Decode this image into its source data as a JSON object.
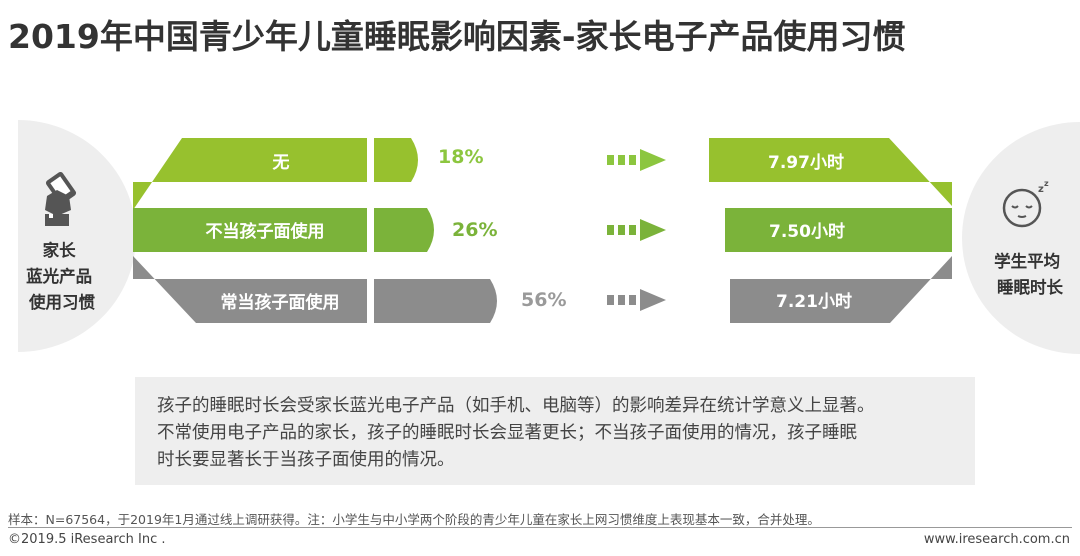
{
  "title": "2019年中国青少年儿童睡眠影响因素-家长电子产品使用习惯",
  "left_label": [
    "家长",
    "蓝光产品",
    "使用习惯"
  ],
  "right_label": [
    "学生平均",
    "睡眠时长"
  ],
  "icons": {
    "left": "hand-holding-phone-icon",
    "right": "sleeping-face-icon",
    "arrow": "dashed-arrow-icon"
  },
  "colors": {
    "light_green": "#97c12e",
    "green": "#7bb33a",
    "gray": "#8c8c8c",
    "pct_green": "#8cc63f",
    "pct_gray": "#9a9a9a"
  },
  "chart_data": {
    "type": "bar",
    "title": "2019年中国青少年儿童睡眠影响因素-家长电子产品使用习惯",
    "categories": [
      "无",
      "不当孩子面使用",
      "常当孩子面使用"
    ],
    "series": [
      {
        "values": [
          18,
          26,
          56
        ],
        "labels": [
          "18%",
          "26%",
          "56%"
        ]
      },
      {
        "values": [
          7.97,
          7.5,
          7.21
        ],
        "labels": [
          "7.97小时",
          "7.50小时",
          "7.21小时"
        ]
      }
    ]
  },
  "note": [
    "孩子的睡眠时长会受家长蓝光电子产品（如手机、电脑等）的影响差异在统计学意义上显著。",
    "不常使用电子产品的家长，孩子的睡眠时长会显著更长；不当孩子面使用的情况，孩子睡眠",
    "时长要显著长于当孩子面使用的情况。"
  ],
  "source": "样本：N=67564，于2019年1月通过线上调研获得。注：小学生与中小学两个阶段的青少年儿童在家长上网习惯维度上表现基本一致，合并处理。",
  "copyright": "©2019.5 iResearch Inc .",
  "website": "www.iresearch.com.cn"
}
